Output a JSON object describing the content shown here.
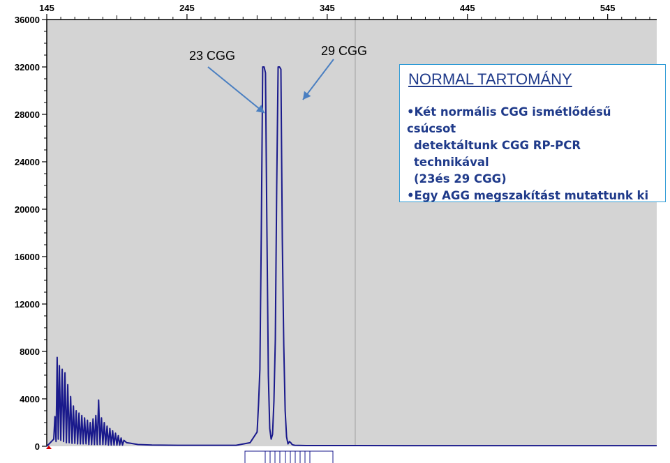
{
  "chart_data": {
    "type": "line",
    "x_ticks": [
      "145",
      "245",
      "345",
      "445",
      "545"
    ],
    "y_ticks": [
      "0",
      "4000",
      "8000",
      "12000",
      "16000",
      "20000",
      "24000",
      "28000",
      "32000",
      "36000"
    ],
    "xlim": [
      145,
      580
    ],
    "ylim": [
      0,
      36000
    ],
    "background": "#d4d4d4",
    "series_color": "#1a1a8c",
    "grid": false,
    "series": [
      {
        "x": [
          145,
          150,
          150.8,
          151.6,
          152.4,
          153.2,
          154,
          155,
          156,
          157,
          158,
          159,
          160,
          161,
          162,
          163,
          164,
          165,
          166,
          167,
          168,
          169,
          170,
          171,
          172,
          173,
          174,
          175,
          176,
          177,
          178,
          179,
          180,
          181,
          182,
          183,
          184,
          185,
          186,
          187,
          188,
          189,
          190,
          191,
          192,
          193,
          194,
          195,
          196,
          197,
          198,
          199,
          200,
          202,
          205,
          210,
          220,
          240,
          260,
          280,
          290,
          295,
          296,
          297,
          298,
          299,
          300,
          301,
          302,
          303,
          304,
          305,
          306,
          307,
          308,
          309,
          310,
          311,
          312,
          313,
          314,
          315,
          316,
          317,
          318,
          319,
          320,
          321,
          322,
          330,
          340,
          350,
          400,
          500,
          580
        ],
        "y": [
          0,
          600,
          2500,
          400,
          7500,
          600,
          6800,
          500,
          6500,
          400,
          6200,
          300,
          5200,
          300,
          4200,
          250,
          3400,
          250,
          3000,
          200,
          2800,
          200,
          2600,
          200,
          2400,
          200,
          2200,
          150,
          2000,
          150,
          2300,
          150,
          2600,
          150,
          3900,
          150,
          2400,
          150,
          2000,
          150,
          1700,
          100,
          1500,
          100,
          1300,
          100,
          1100,
          100,
          900,
          100,
          700,
          100,
          500,
          300,
          250,
          150,
          100,
          80,
          80,
          80,
          300,
          1200,
          3500,
          6500,
          18000,
          32000,
          32000,
          31500,
          18500,
          6000,
          1500,
          600,
          1000,
          3800,
          9000,
          22000,
          32000,
          32000,
          31800,
          17500,
          8500,
          3000,
          800,
          200,
          400,
          300,
          150,
          100,
          80,
          60,
          60,
          60,
          50,
          50,
          50
        ]
      }
    ],
    "annotations": [
      "23 CGG",
      "29 CGG"
    ]
  },
  "info_box": {
    "title": "NORMAL TARTOMÁNY",
    "bullet1_line1": "•Két normális CGG ismétlődésű csúcsot",
    "bullet1_line2": "detektáltunk CGG RP-PCR technikával",
    "bullet1_line3": "(23és 29 CGG)",
    "bullet2": "•Egy AGG megszakítást mutattunk ki",
    "border_color": "#2e9bd6",
    "text_color": "#1f3a8a"
  },
  "callouts": {
    "label_23": "23 CGG",
    "label_29": "29 CGG",
    "arrow_color": "#4a7fc1"
  }
}
